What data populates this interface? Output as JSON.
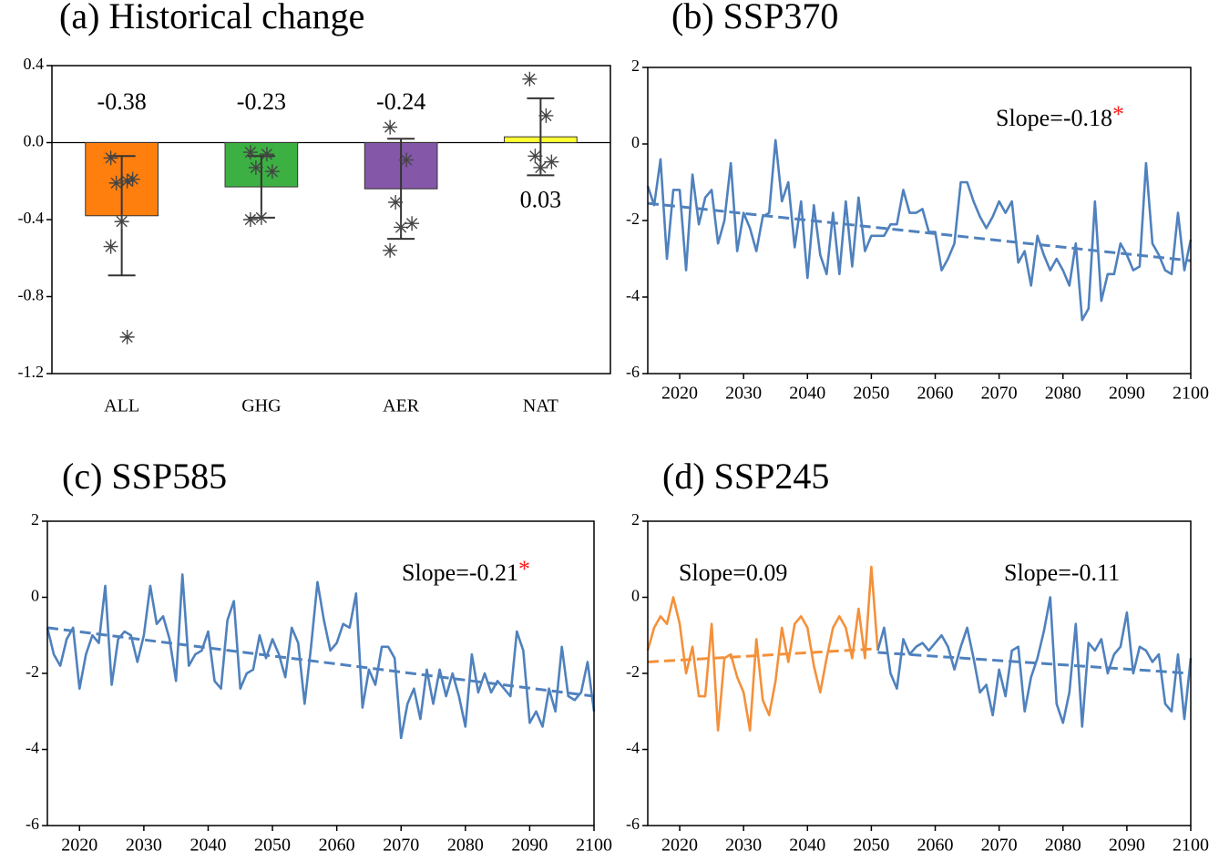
{
  "chart_data": [
    {
      "type": "bar",
      "title": "(a) Historical change",
      "categories": [
        "ALL",
        "GHG",
        "AER",
        "NAT"
      ],
      "values": [
        -0.38,
        -0.23,
        -0.24,
        0.03
      ],
      "errors": [
        0.31,
        0.16,
        0.26,
        0.2
      ],
      "colors": [
        "#ff7f0e",
        "#3cb043",
        "#8457a8",
        "#ffff33"
      ],
      "points": [
        [
          -0.08,
          -0.2,
          -0.21,
          -0.19,
          -0.41,
          -0.54,
          -1.01
        ],
        [
          -0.05,
          -0.06,
          -0.13,
          -0.15,
          -0.39,
          -0.4
        ],
        [
          0.08,
          -0.09,
          -0.31,
          -0.42,
          -0.44,
          -0.56
        ],
        [
          0.33,
          0.14,
          -0.07,
          -0.1,
          -0.13
        ]
      ],
      "ylim": [
        -1.2,
        0.4
      ],
      "yticks": [
        -1.2,
        -0.8,
        -0.4,
        {
          "value": 0,
          "label": "0.0"
        },
        0.4
      ]
    },
    {
      "type": "line",
      "title": "(b) SSP370",
      "x": [
        2015,
        2016,
        2017,
        2018,
        2019,
        2020,
        2021,
        2022,
        2023,
        2024,
        2025,
        2026,
        2027,
        2028,
        2029,
        2030,
        2031,
        2032,
        2033,
        2034,
        2035,
        2036,
        2037,
        2038,
        2039,
        2040,
        2041,
        2042,
        2043,
        2044,
        2045,
        2046,
        2047,
        2048,
        2049,
        2050,
        2051,
        2052,
        2053,
        2054,
        2055,
        2056,
        2057,
        2058,
        2059,
        2060,
        2061,
        2062,
        2063,
        2064,
        2065,
        2066,
        2067,
        2068,
        2069,
        2070,
        2071,
        2072,
        2073,
        2074,
        2075,
        2076,
        2077,
        2078,
        2079,
        2080,
        2081,
        2082,
        2083,
        2084,
        2085,
        2086,
        2087,
        2088,
        2089,
        2090,
        2091,
        2092,
        2093,
        2094,
        2095,
        2096,
        2097,
        2098,
        2099,
        2100
      ],
      "series": [
        {
          "color": "#4f81bd",
          "values": [
            -1.1,
            -1.6,
            -0.4,
            -3.0,
            -1.2,
            -1.2,
            -3.3,
            -0.8,
            -2.1,
            -1.4,
            -1.2,
            -2.6,
            -2.0,
            -0.5,
            -2.8,
            -1.8,
            -2.2,
            -2.8,
            -1.9,
            -1.8,
            0.1,
            -1.5,
            -1.0,
            -2.7,
            -1.5,
            -3.5,
            -1.6,
            -2.9,
            -3.4,
            -1.8,
            -3.4,
            -1.5,
            -3.2,
            -1.4,
            -2.8,
            -2.4,
            -2.4,
            -2.4,
            -2.1,
            -2.1,
            -1.2,
            -1.8,
            -1.8,
            -1.7,
            -2.3,
            -2.3,
            -3.3,
            -3.0,
            -2.6,
            -1.0,
            -1.0,
            -1.5,
            -1.9,
            -2.2,
            -1.9,
            -1.5,
            -1.8,
            -1.5,
            -3.1,
            -2.8,
            -3.7,
            -2.4,
            -2.9,
            -3.3,
            -3.0,
            -3.3,
            -3.7,
            -2.6,
            -4.6,
            -4.3,
            -1.5,
            -4.1,
            -3.4,
            -3.4,
            -2.6,
            -2.9,
            -3.3,
            -3.2,
            -0.5,
            -2.6,
            -2.9,
            -3.3,
            -3.4,
            -1.8,
            -3.3,
            -2.5
          ]
        }
      ],
      "trends": [
        {
          "color": "#4f81bd",
          "x": [
            2015,
            2100
          ],
          "values": [
            -1.55,
            -3.05
          ]
        }
      ],
      "annotations": [
        {
          "text": "Slope=-0.18",
          "mark": "*",
          "mark_color": "#ff2020"
        }
      ],
      "xlim": [
        2015,
        2100
      ],
      "xticks": [
        2020,
        2030,
        2040,
        2050,
        2060,
        2070,
        2080,
        2090,
        2100
      ],
      "ylim": [
        -6,
        2
      ],
      "yticks": [
        -6,
        -4,
        -2,
        0,
        2
      ]
    },
    {
      "type": "line",
      "title": "(c) SSP585",
      "x": [
        2015,
        2016,
        2017,
        2018,
        2019,
        2020,
        2021,
        2022,
        2023,
        2024,
        2025,
        2026,
        2027,
        2028,
        2029,
        2030,
        2031,
        2032,
        2033,
        2034,
        2035,
        2036,
        2037,
        2038,
        2039,
        2040,
        2041,
        2042,
        2043,
        2044,
        2045,
        2046,
        2047,
        2048,
        2049,
        2050,
        2051,
        2052,
        2053,
        2054,
        2055,
        2056,
        2057,
        2058,
        2059,
        2060,
        2061,
        2062,
        2063,
        2064,
        2065,
        2066,
        2067,
        2068,
        2069,
        2070,
        2071,
        2072,
        2073,
        2074,
        2075,
        2076,
        2077,
        2078,
        2079,
        2080,
        2081,
        2082,
        2083,
        2084,
        2085,
        2086,
        2087,
        2088,
        2089,
        2090,
        2091,
        2092,
        2093,
        2094,
        2095,
        2096,
        2097,
        2098,
        2099,
        2100
      ],
      "series": [
        {
          "color": "#4f81bd",
          "values": [
            -0.8,
            -1.5,
            -1.8,
            -1.1,
            -0.8,
            -2.4,
            -1.5,
            -1.0,
            -1.2,
            0.3,
            -2.3,
            -1.1,
            -0.9,
            -1.0,
            -1.7,
            -1.0,
            0.3,
            -0.7,
            -0.5,
            -1.1,
            -2.2,
            0.6,
            -1.8,
            -1.5,
            -1.4,
            -0.9,
            -2.2,
            -2.4,
            -0.6,
            -0.1,
            -2.4,
            -2.0,
            -1.9,
            -1.0,
            -1.6,
            -1.1,
            -1.5,
            -2.1,
            -0.8,
            -1.2,
            -2.8,
            -1.3,
            0.4,
            -0.6,
            -1.4,
            -1.2,
            -0.7,
            -0.8,
            0.1,
            -2.9,
            -1.9,
            -2.3,
            -1.3,
            -1.3,
            -1.6,
            -3.7,
            -2.8,
            -2.4,
            -3.2,
            -1.9,
            -2.8,
            -1.9,
            -2.6,
            -2.0,
            -2.6,
            -3.4,
            -1.5,
            -2.5,
            -2.0,
            -2.5,
            -2.2,
            -2.4,
            -2.6,
            -0.9,
            -1.4,
            -3.3,
            -3.0,
            -3.4,
            -2.4,
            -3.0,
            -1.3,
            -2.6,
            -2.7,
            -2.5,
            -1.7,
            -3.0
          ]
        }
      ],
      "trends": [
        {
          "color": "#4f81bd",
          "x": [
            2015,
            2100
          ],
          "values": [
            -0.8,
            -2.6
          ]
        }
      ],
      "annotations": [
        {
          "text": "Slope=-0.21",
          "mark": "*",
          "mark_color": "#ff2020"
        }
      ],
      "xlim": [
        2015,
        2100
      ],
      "xticks": [
        2020,
        2030,
        2040,
        2050,
        2060,
        2070,
        2080,
        2090,
        2100
      ],
      "ylim": [
        -6,
        2
      ],
      "yticks": [
        -6,
        -4,
        -2,
        0,
        2
      ]
    },
    {
      "type": "line",
      "title": "(d) SSP245",
      "x": [
        2015,
        2016,
        2017,
        2018,
        2019,
        2020,
        2021,
        2022,
        2023,
        2024,
        2025,
        2026,
        2027,
        2028,
        2029,
        2030,
        2031,
        2032,
        2033,
        2034,
        2035,
        2036,
        2037,
        2038,
        2039,
        2040,
        2041,
        2042,
        2043,
        2044,
        2045,
        2046,
        2047,
        2048,
        2049,
        2050,
        2051,
        2052,
        2053,
        2054,
        2055,
        2056,
        2057,
        2058,
        2059,
        2060,
        2061,
        2062,
        2063,
        2064,
        2065,
        2066,
        2067,
        2068,
        2069,
        2070,
        2071,
        2072,
        2073,
        2074,
        2075,
        2076,
        2077,
        2078,
        2079,
        2080,
        2081,
        2082,
        2083,
        2084,
        2085,
        2086,
        2087,
        2088,
        2089,
        2090,
        2091,
        2092,
        2093,
        2094,
        2095,
        2096,
        2097,
        2098,
        2099,
        2100
      ],
      "series": [
        {
          "color": "#f4903a",
          "values": [
            -1.4,
            -0.8,
            -0.5,
            -0.7,
            0.0,
            -0.7,
            -2.0,
            -1.3,
            -2.6,
            -2.6,
            -0.7,
            -3.5,
            -1.6,
            -1.5,
            -2.1,
            -2.5,
            -3.5,
            -1.1,
            -2.7,
            -3.1,
            -2.2,
            -0.8,
            -1.7,
            -0.7,
            -0.5,
            -0.8,
            -1.8,
            -2.5,
            -1.6,
            -0.8,
            -0.5,
            -0.8,
            -1.6,
            -0.3,
            -1.6,
            0.8,
            -1.4,
            null,
            null,
            null,
            null,
            null,
            null,
            null,
            null,
            null,
            null,
            null,
            null,
            null,
            null,
            null,
            null,
            null,
            null,
            null,
            null,
            null,
            null,
            null,
            null,
            null,
            null,
            null,
            null,
            null,
            null,
            null,
            null,
            null,
            null,
            null,
            null,
            null,
            null,
            null,
            null,
            null,
            null,
            null,
            null,
            null,
            null,
            null,
            null,
            null
          ]
        },
        {
          "color": "#4f81bd",
          "values": [
            null,
            null,
            null,
            null,
            null,
            null,
            null,
            null,
            null,
            null,
            null,
            null,
            null,
            null,
            null,
            null,
            null,
            null,
            null,
            null,
            null,
            null,
            null,
            null,
            null,
            null,
            null,
            null,
            null,
            null,
            null,
            null,
            null,
            null,
            null,
            null,
            -1.4,
            -0.8,
            -2.0,
            -2.4,
            -1.1,
            -1.5,
            -1.3,
            -1.2,
            -1.4,
            -1.2,
            -1.0,
            -1.3,
            -1.9,
            -1.3,
            -0.8,
            -1.6,
            -2.5,
            -2.3,
            -3.1,
            -1.9,
            -2.6,
            -1.4,
            -1.3,
            -3.0,
            -2.1,
            -1.6,
            -0.9,
            0.0,
            -2.8,
            -3.3,
            -2.5,
            -0.7,
            -3.4,
            -1.2,
            -1.4,
            -1.1,
            -2.0,
            -1.5,
            -1.3,
            -0.4,
            -2.0,
            -1.3,
            -1.4,
            -1.7,
            -1.5,
            -2.8,
            -3.0,
            -1.5,
            -3.2,
            -1.6
          ]
        }
      ],
      "trends": [
        {
          "color": "#f4903a",
          "x": [
            2015,
            2051
          ],
          "values": [
            -1.7,
            -1.35
          ]
        },
        {
          "color": "#4f81bd",
          "x": [
            2051,
            2100
          ],
          "values": [
            -1.45,
            -2.0
          ]
        }
      ],
      "annotations": [
        {
          "text": "Slope=0.09"
        },
        {
          "text": "Slope=-0.11"
        }
      ],
      "xlim": [
        2015,
        2100
      ],
      "xticks": [
        2020,
        2030,
        2040,
        2050,
        2060,
        2070,
        2080,
        2090,
        2100
      ],
      "ylim": [
        -6,
        2
      ],
      "yticks": [
        -6,
        -4,
        -2,
        0,
        2
      ]
    }
  ]
}
